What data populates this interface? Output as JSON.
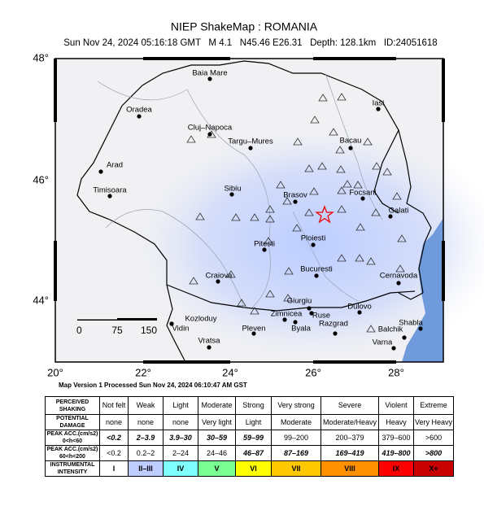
{
  "header": {
    "title": "NIEP ShakeMap : ROMANIA",
    "subtitle": "Sun Nov 24, 2024 05:16:18 GMT   M 4.1   N45.46 E26.31   Depth: 128.1km   ID:24051618"
  },
  "map": {
    "lon_labels": [
      "20°",
      "22°",
      "24°",
      "26°",
      "28°"
    ],
    "lat_labels": [
      "48°",
      "46°",
      "44°"
    ],
    "cities": [
      "Baia Mare",
      "Oradea",
      "Cluj–Napoca",
      "Targu–Mures",
      "Iasi",
      "Bacau",
      "Arad",
      "Timisoara",
      "Sibiu",
      "Brasov",
      "Focsani",
      "Galati",
      "Pitesti",
      "Ploiesti",
      "Bucuresti",
      "Craiova",
      "Cernavoda",
      "Giurgiu",
      "Zimnicea",
      "Ruse",
      "Dulovo",
      "Kozloduy",
      "Vidin",
      "Vratsa",
      "Pleven",
      "Byala",
      "Razgrad",
      "Balchik",
      "Shabla",
      "Varna"
    ],
    "scale_labels": [
      "0",
      "75",
      "150"
    ]
  },
  "footer": "Map Version 1 Processed Sun Nov 24, 2024 06:10:47 AM GST",
  "table": {
    "rows": [
      [
        "PERCEIVED SHAKING",
        "Not felt",
        "Weak",
        "Light",
        "Moderate",
        "Strong",
        "Very strong",
        "Severe",
        "Violent",
        "Extreme"
      ],
      [
        "POTENTIAL DAMAGE",
        "none",
        "none",
        "none",
        "Very light",
        "Light",
        "Moderate",
        "Moderate/Heavy",
        "Heavy",
        "Very Heavy"
      ],
      [
        "PEAK ACC.(cm/s2) 0<h<60",
        "<0.2",
        "2–3.9",
        "3.9–30",
        "30–59",
        "59–99",
        "99–200",
        "200–379",
        "379–600",
        ">600"
      ],
      [
        "PEAK ACC.(cm/s2) 60<h<200",
        "<0.2",
        "0.2–2",
        "2–24",
        "24–46",
        "46–87",
        "87–169",
        "169–419",
        "419–800",
        ">800"
      ],
      [
        "INSTRUMENTAL INTENSITY",
        "I",
        "II–III",
        "IV",
        "V",
        "VI",
        "VII",
        "VIII",
        "IX",
        "X+"
      ]
    ]
  }
}
